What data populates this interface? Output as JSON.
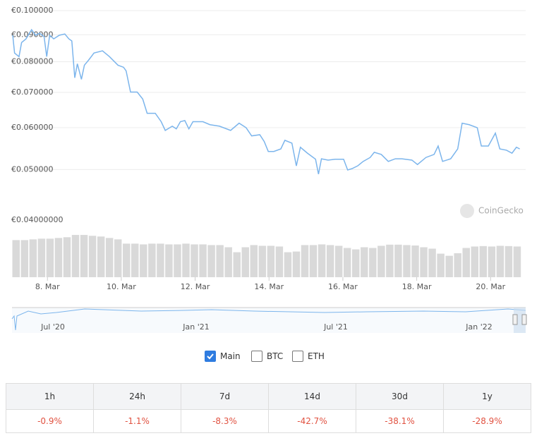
{
  "chart_data": {
    "type": "line",
    "log_scale": true,
    "grid": true,
    "xlim": [
      7.04,
      20.95
    ],
    "xticks": [
      {
        "value": 8,
        "label": "8. Mar"
      },
      {
        "value": 10,
        "label": "10. Mar"
      },
      {
        "value": 12,
        "label": "12. Mar"
      },
      {
        "value": 14,
        "label": "14. Mar"
      },
      {
        "value": 16,
        "label": "16. Mar"
      },
      {
        "value": 18,
        "label": "18. Mar"
      },
      {
        "value": 20,
        "label": "20. Mar"
      }
    ],
    "ylim": [
      0.0475,
      0.1
    ],
    "yticks": [
      {
        "value": 0.1,
        "label": "€0.100000"
      },
      {
        "value": 0.09,
        "label": "€0.090000"
      },
      {
        "value": 0.08,
        "label": "€0.080000"
      },
      {
        "value": 0.07,
        "label": "€0.070000"
      },
      {
        "value": 0.06,
        "label": "€0.060000"
      },
      {
        "value": 0.05,
        "label": "€0.050000"
      }
    ],
    "y2lim": [
      0,
      0.04
    ],
    "y2ticks": [
      {
        "value": 0.04,
        "label": "€0.04000000"
      }
    ],
    "series": [
      {
        "name": "Main",
        "color": "#7cb5ec",
        "x": [
          7.06,
          7.11,
          7.23,
          7.3,
          7.42,
          7.57,
          7.68,
          7.79,
          7.91,
          7.98,
          8.06,
          8.17,
          8.32,
          8.47,
          8.58,
          8.66,
          8.74,
          8.81,
          8.92,
          9.0,
          9.11,
          9.26,
          9.49,
          9.68,
          9.91,
          10.06,
          10.13,
          10.25,
          10.43,
          10.58,
          10.7,
          10.92,
          11.08,
          11.19,
          11.38,
          11.49,
          11.6,
          11.72,
          11.83,
          11.94,
          12.21,
          12.4,
          12.66,
          12.96,
          13.19,
          13.38,
          13.53,
          13.75,
          13.87,
          13.98,
          14.13,
          14.32,
          14.43,
          14.62,
          14.74,
          14.85,
          15.04,
          15.26,
          15.34,
          15.42,
          15.6,
          15.79,
          16.02,
          16.13,
          16.25,
          16.4,
          16.55,
          16.74,
          16.85,
          17.04,
          17.23,
          17.42,
          17.6,
          17.87,
          18.02,
          18.25,
          18.47,
          18.58,
          18.7,
          18.92,
          19.11,
          19.23,
          19.42,
          19.64,
          19.75,
          19.94,
          20.13,
          20.25,
          20.43,
          20.58,
          20.7,
          20.79
        ],
        "values": [
          0.0898,
          0.0831,
          0.0818,
          0.087,
          0.0884,
          0.092,
          0.0898,
          0.0906,
          0.0892,
          0.0818,
          0.0898,
          0.0884,
          0.0898,
          0.0903,
          0.0884,
          0.0876,
          0.0746,
          0.0793,
          0.0741,
          0.0788,
          0.0805,
          0.0831,
          0.0839,
          0.0818,
          0.0788,
          0.0781,
          0.0769,
          0.0701,
          0.0701,
          0.068,
          0.0639,
          0.0639,
          0.0616,
          0.0593,
          0.0604,
          0.0597,
          0.0616,
          0.0619,
          0.0597,
          0.0616,
          0.0616,
          0.0608,
          0.0604,
          0.0593,
          0.0612,
          0.06,
          0.0579,
          0.0582,
          0.0565,
          0.0541,
          0.0541,
          0.0547,
          0.0568,
          0.0561,
          0.0508,
          0.0551,
          0.0537,
          0.0523,
          0.049,
          0.0524,
          0.0521,
          0.0523,
          0.0523,
          0.0499,
          0.0502,
          0.0508,
          0.0518,
          0.0527,
          0.0539,
          0.0534,
          0.0518,
          0.0524,
          0.0524,
          0.0521,
          0.0511,
          0.0527,
          0.0534,
          0.0554,
          0.0518,
          0.0524,
          0.0547,
          0.0612,
          0.0608,
          0.06,
          0.0554,
          0.0554,
          0.0586,
          0.0547,
          0.0544,
          0.0537,
          0.0551,
          0.0547
        ]
      },
      {
        "type": "bar",
        "axis": "y2",
        "color": "#d9d9d9",
        "x": [
          7.15,
          7.38,
          7.61,
          7.84,
          8.07,
          8.3,
          8.53,
          8.76,
          8.99,
          9.22,
          9.45,
          9.68,
          9.91,
          10.14,
          10.37,
          10.6,
          10.83,
          11.06,
          11.29,
          11.52,
          11.75,
          11.98,
          12.21,
          12.44,
          12.67,
          12.9,
          13.13,
          13.36,
          13.59,
          13.82,
          14.05,
          14.28,
          14.51,
          14.74,
          14.97,
          15.2,
          15.43,
          15.66,
          15.89,
          16.12,
          16.35,
          16.58,
          16.81,
          17.04,
          17.27,
          17.5,
          17.73,
          17.96,
          18.19,
          18.42,
          18.65,
          18.88,
          19.11,
          19.34,
          19.57,
          19.8,
          20.03,
          20.26,
          20.49,
          20.72
        ],
        "values": [
          0.026,
          0.026,
          0.0265,
          0.027,
          0.027,
          0.0275,
          0.028,
          0.0296,
          0.0296,
          0.029,
          0.0285,
          0.0275,
          0.0265,
          0.0235,
          0.0235,
          0.023,
          0.0235,
          0.0235,
          0.023,
          0.023,
          0.0235,
          0.023,
          0.023,
          0.0225,
          0.0225,
          0.021,
          0.0175,
          0.021,
          0.0225,
          0.022,
          0.022,
          0.0215,
          0.0175,
          0.018,
          0.0225,
          0.0225,
          0.023,
          0.0225,
          0.022,
          0.0205,
          0.0195,
          0.021,
          0.0205,
          0.022,
          0.0228,
          0.0228,
          0.0225,
          0.0222,
          0.021,
          0.02,
          0.0165,
          0.015,
          0.0168,
          0.0205,
          0.0215,
          0.0218,
          0.0215,
          0.022,
          0.0218,
          0.0215
        ]
      }
    ],
    "watermark": "CoinGecko",
    "navigator_labels": [
      "Jul '20",
      "Jan '21",
      "Jul '21",
      "Jan '22"
    ],
    "toggles": [
      {
        "label": "Main",
        "checked": true
      },
      {
        "label": "BTC",
        "checked": false
      },
      {
        "label": "ETH",
        "checked": false
      }
    ]
  },
  "table": {
    "headers": [
      "1h",
      "24h",
      "7d",
      "14d",
      "30d",
      "1y"
    ],
    "rows": [
      [
        "-0.9%",
        "-1.1%",
        "-8.3%",
        "-42.7%",
        "-38.1%",
        "-28.9%"
      ]
    ]
  }
}
